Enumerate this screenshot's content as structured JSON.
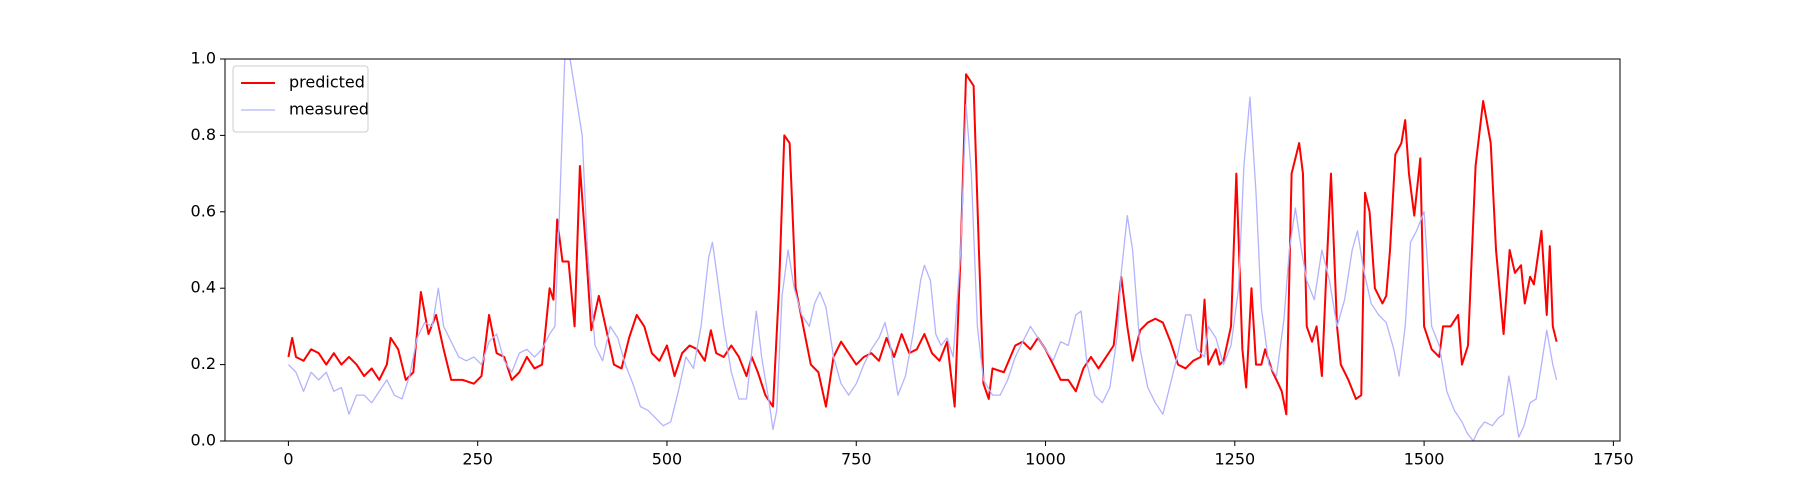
{
  "chart_data": {
    "type": "line",
    "xlim": [
      -83.75,
      1758.75
    ],
    "xticks": [
      0,
      250,
      500,
      750,
      1000,
      1250,
      1500,
      1750
    ],
    "ylim": [
      0,
      1
    ],
    "yticks": [
      {
        "value": 0,
        "label": "0.0"
      },
      {
        "value": 0.2,
        "label": "0.2"
      },
      {
        "value": 0.4,
        "label": "0.4"
      },
      {
        "value": 0.6,
        "label": "0.6"
      },
      {
        "value": 0.8,
        "label": "0.8"
      },
      {
        "value": 1,
        "label": "1.0"
      }
    ],
    "legend": "upper left",
    "series": [
      {
        "name": "predicted",
        "color": "#ff0000",
        "width": 2,
        "x": [
          0,
          5,
          10,
          20,
          30,
          40,
          50,
          60,
          70,
          80,
          90,
          100,
          110,
          120,
          130,
          135,
          145,
          155,
          165,
          175,
          185,
          195,
          205,
          215,
          230,
          245,
          255,
          265,
          275,
          285,
          295,
          305,
          315,
          325,
          335,
          345,
          350,
          355,
          362,
          370,
          378,
          385,
          393,
          400,
          410,
          420,
          430,
          440,
          450,
          460,
          470,
          480,
          490,
          500,
          510,
          520,
          530,
          540,
          550,
          558,
          565,
          575,
          585,
          595,
          605,
          612,
          620,
          630,
          640,
          648,
          655,
          662,
          670,
          680,
          690,
          700,
          710,
          720,
          730,
          740,
          750,
          760,
          770,
          780,
          790,
          800,
          810,
          820,
          830,
          840,
          850,
          860,
          870,
          880,
          888,
          895,
          905,
          912,
          918,
          925,
          930,
          945,
          960,
          970,
          980,
          990,
          1000,
          1010,
          1020,
          1030,
          1040,
          1050,
          1060,
          1070,
          1080,
          1090,
          1100,
          1108,
          1115,
          1125,
          1135,
          1145,
          1155,
          1165,
          1175,
          1185,
          1195,
          1205,
          1210,
          1215,
          1225,
          1230,
          1235,
          1245,
          1252,
          1260,
          1265,
          1272,
          1278,
          1285,
          1290,
          1300,
          1305,
          1312,
          1318,
          1325,
          1335,
          1340,
          1345,
          1352,
          1358,
          1365,
          1370,
          1377,
          1385,
          1390,
          1400,
          1410,
          1417,
          1422,
          1428,
          1435,
          1445,
          1450,
          1455,
          1462,
          1470,
          1475,
          1480,
          1487,
          1495,
          1500,
          1510,
          1520,
          1525,
          1535,
          1545,
          1550,
          1558,
          1568,
          1578,
          1588,
          1595,
          1605,
          1613,
          1620,
          1628,
          1633,
          1640,
          1645,
          1655,
          1662,
          1666,
          1670,
          1675
        ],
        "values": [
          0.22,
          0.27,
          0.22,
          0.21,
          0.24,
          0.23,
          0.2,
          0.23,
          0.2,
          0.22,
          0.2,
          0.17,
          0.19,
          0.16,
          0.2,
          0.27,
          0.24,
          0.16,
          0.18,
          0.39,
          0.28,
          0.33,
          0.24,
          0.16,
          0.16,
          0.15,
          0.17,
          0.33,
          0.23,
          0.22,
          0.16,
          0.18,
          0.22,
          0.19,
          0.2,
          0.4,
          0.37,
          0.58,
          0.47,
          0.47,
          0.3,
          0.72,
          0.5,
          0.29,
          0.38,
          0.29,
          0.2,
          0.19,
          0.27,
          0.33,
          0.3,
          0.23,
          0.21,
          0.25,
          0.17,
          0.23,
          0.25,
          0.24,
          0.21,
          0.29,
          0.23,
          0.22,
          0.25,
          0.22,
          0.17,
          0.22,
          0.18,
          0.12,
          0.09,
          0.4,
          0.8,
          0.78,
          0.4,
          0.3,
          0.2,
          0.18,
          0.09,
          0.22,
          0.26,
          0.23,
          0.2,
          0.22,
          0.23,
          0.21,
          0.27,
          0.22,
          0.28,
          0.23,
          0.24,
          0.28,
          0.23,
          0.21,
          0.26,
          0.09,
          0.5,
          0.96,
          0.93,
          0.5,
          0.15,
          0.11,
          0.19,
          0.18,
          0.25,
          0.26,
          0.24,
          0.27,
          0.24,
          0.2,
          0.16,
          0.16,
          0.13,
          0.19,
          0.22,
          0.19,
          0.22,
          0.25,
          0.43,
          0.3,
          0.21,
          0.29,
          0.31,
          0.32,
          0.31,
          0.26,
          0.2,
          0.19,
          0.21,
          0.22,
          0.37,
          0.2,
          0.24,
          0.2,
          0.21,
          0.3,
          0.7,
          0.24,
          0.14,
          0.4,
          0.2,
          0.2,
          0.24,
          0.18,
          0.16,
          0.13,
          0.07,
          0.7,
          0.78,
          0.7,
          0.3,
          0.26,
          0.3,
          0.17,
          0.4,
          0.7,
          0.3,
          0.2,
          0.16,
          0.11,
          0.12,
          0.65,
          0.6,
          0.4,
          0.36,
          0.38,
          0.5,
          0.75,
          0.78,
          0.84,
          0.7,
          0.59,
          0.74,
          0.3,
          0.24,
          0.22,
          0.3,
          0.3,
          0.33,
          0.2,
          0.25,
          0.72,
          0.89,
          0.78,
          0.5,
          0.28,
          0.5,
          0.44,
          0.46,
          0.36,
          0.43,
          0.41,
          0.55,
          0.33,
          0.51,
          0.3,
          0.26
        ]
      },
      {
        "name": "measured",
        "color": "#b3b3ff",
        "width": 1.3,
        "x": [
          0,
          10,
          20,
          30,
          40,
          50,
          60,
          70,
          80,
          90,
          100,
          110,
          120,
          130,
          140,
          150,
          160,
          170,
          180,
          190,
          198,
          205,
          215,
          225,
          235,
          245,
          255,
          265,
          275,
          285,
          295,
          305,
          315,
          325,
          335,
          345,
          352,
          358,
          365,
          372,
          380,
          388,
          395,
          405,
          415,
          425,
          435,
          445,
          455,
          465,
          475,
          485,
          495,
          505,
          515,
          525,
          535,
          545,
          555,
          560,
          565,
          575,
          585,
          595,
          605,
          610,
          618,
          625,
          635,
          640,
          645,
          652,
          660,
          668,
          678,
          688,
          695,
          702,
          710,
          720,
          730,
          740,
          750,
          760,
          770,
          780,
          788,
          795,
          805,
          815,
          825,
          835,
          840,
          848,
          855,
          862,
          870,
          878,
          888,
          895,
          902,
          910,
          918,
          930,
          940,
          950,
          960,
          970,
          980,
          990,
          1000,
          1010,
          1020,
          1030,
          1040,
          1047,
          1055,
          1065,
          1075,
          1085,
          1095,
          1100,
          1108,
          1115,
          1125,
          1135,
          1145,
          1155,
          1165,
          1175,
          1185,
          1192,
          1200,
          1210,
          1215,
          1225,
          1235,
          1245,
          1255,
          1262,
          1270,
          1278,
          1285,
          1295,
          1305,
          1315,
          1322,
          1330,
          1338,
          1345,
          1355,
          1365,
          1375,
          1385,
          1395,
          1405,
          1412,
          1420,
          1430,
          1440,
          1450,
          1460,
          1467,
          1475,
          1482,
          1490,
          1500,
          1510,
          1520,
          1530,
          1540,
          1550,
          1557,
          1565,
          1572,
          1580,
          1590,
          1598,
          1605,
          1612,
          1618,
          1625,
          1632,
          1640,
          1648,
          1655,
          1662,
          1670,
          1675
        ],
        "values": [
          0.2,
          0.18,
          0.13,
          0.18,
          0.16,
          0.18,
          0.13,
          0.14,
          0.07,
          0.12,
          0.12,
          0.1,
          0.13,
          0.16,
          0.12,
          0.11,
          0.17,
          0.27,
          0.31,
          0.3,
          0.4,
          0.3,
          0.26,
          0.22,
          0.21,
          0.22,
          0.2,
          0.26,
          0.28,
          0.21,
          0.18,
          0.23,
          0.24,
          0.22,
          0.24,
          0.28,
          0.3,
          0.6,
          1.0,
          1.0,
          0.9,
          0.8,
          0.5,
          0.25,
          0.21,
          0.3,
          0.27,
          0.2,
          0.15,
          0.09,
          0.08,
          0.06,
          0.04,
          0.05,
          0.13,
          0.22,
          0.19,
          0.3,
          0.48,
          0.52,
          0.45,
          0.3,
          0.18,
          0.11,
          0.11,
          0.2,
          0.34,
          0.22,
          0.1,
          0.03,
          0.08,
          0.38,
          0.5,
          0.4,
          0.33,
          0.3,
          0.36,
          0.39,
          0.35,
          0.22,
          0.15,
          0.12,
          0.15,
          0.2,
          0.24,
          0.27,
          0.31,
          0.25,
          0.12,
          0.17,
          0.28,
          0.42,
          0.46,
          0.42,
          0.28,
          0.25,
          0.27,
          0.22,
          0.5,
          0.88,
          0.7,
          0.3,
          0.16,
          0.12,
          0.12,
          0.16,
          0.22,
          0.26,
          0.3,
          0.27,
          0.24,
          0.21,
          0.26,
          0.25,
          0.33,
          0.34,
          0.2,
          0.12,
          0.1,
          0.14,
          0.28,
          0.44,
          0.59,
          0.5,
          0.24,
          0.14,
          0.1,
          0.07,
          0.15,
          0.23,
          0.33,
          0.33,
          0.24,
          0.22,
          0.3,
          0.27,
          0.2,
          0.25,
          0.4,
          0.72,
          0.9,
          0.65,
          0.35,
          0.2,
          0.17,
          0.32,
          0.5,
          0.61,
          0.5,
          0.42,
          0.37,
          0.5,
          0.42,
          0.3,
          0.37,
          0.5,
          0.55,
          0.45,
          0.36,
          0.33,
          0.31,
          0.24,
          0.17,
          0.3,
          0.52,
          0.55,
          0.6,
          0.3,
          0.25,
          0.13,
          0.08,
          0.05,
          0.02,
          0.0,
          0.03,
          0.05,
          0.04,
          0.06,
          0.07,
          0.17,
          0.1,
          0.01,
          0.04,
          0.1,
          0.11,
          0.2,
          0.29,
          0.2,
          0.16
        ]
      }
    ]
  }
}
